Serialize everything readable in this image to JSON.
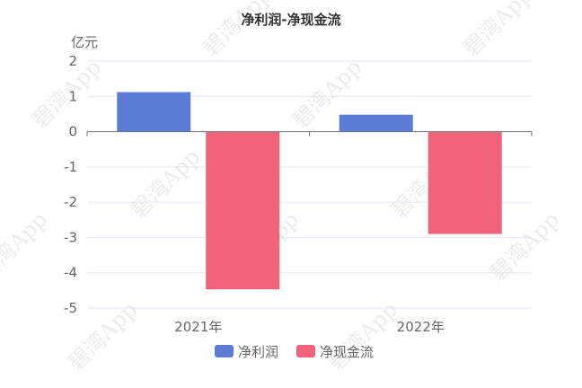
{
  "watermark": "碧湾App",
  "chart_data": {
    "type": "bar",
    "title": "净利润-净现金流",
    "unit_label": "亿元",
    "categories": [
      "2021年",
      "2022年"
    ],
    "series": [
      {
        "name": "净利润",
        "color": "#5b7bd5",
        "values": [
          1.12,
          0.48
        ]
      },
      {
        "name": "净现金流",
        "color": "#f2637b",
        "values": [
          -4.47,
          -2.9
        ]
      }
    ],
    "ylim": [
      -5,
      2
    ],
    "yticks": [
      2,
      1,
      0,
      -1,
      -2,
      -3,
      -4,
      -5
    ],
    "grid": true,
    "legend_position": "bottom-center"
  }
}
